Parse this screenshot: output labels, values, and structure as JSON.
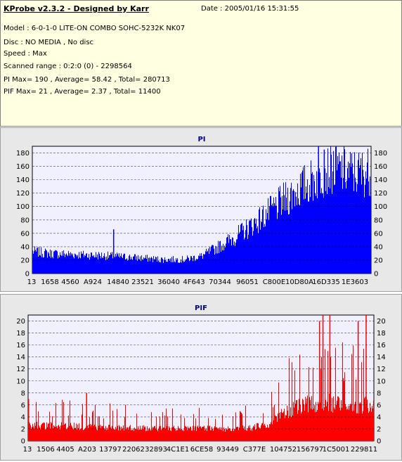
{
  "info": {
    "title": "KProbe v2.3.2 - Designed by Karr",
    "date": "Date : 2005/01/16 15:31:55",
    "model": "Model : 6-0-1-0 LITE-ON COMBO SOHC-5232K NK07",
    "disc": "Disc : NO MEDIA , No disc",
    "speed": "Speed : Max",
    "scanned_range": "Scanned range : 0:2:0 (0) - 2298564",
    "pi_summary": "PI Max= 190 , Average= 58.42 , Total= 280713",
    "pif_summary": "PIF Max= 21 , Average= 2.37 , Total= 11400"
  },
  "chart_data": [
    {
      "type": "bar",
      "title": "PI",
      "ylim": [
        0,
        190
      ],
      "yticks": [
        0,
        20,
        40,
        60,
        80,
        100,
        120,
        140,
        160,
        180
      ],
      "xtick_labels": [
        "13",
        "1658",
        "4560",
        "A924",
        "14840",
        "23521",
        "36040",
        "4F643",
        "70344",
        "96051",
        "C800E",
        "10D80A",
        "16D335",
        "1E3603"
      ],
      "color": "#0000ff",
      "grid": true,
      "envelope_x": [
        0,
        0.05,
        0.1,
        0.2,
        0.3,
        0.38,
        0.45,
        0.5,
        0.55,
        0.6,
        0.65,
        0.7,
        0.75,
        0.8,
        0.85,
        0.88,
        0.92,
        0.96,
        1.0
      ],
      "envelope_y": [
        33,
        30,
        29,
        27,
        24,
        21,
        21,
        26,
        40,
        55,
        73,
        92,
        112,
        130,
        146,
        158,
        153,
        150,
        153
      ],
      "spikes": [
        {
          "x": 0.239,
          "y": 66
        },
        {
          "x": 0.845,
          "y": 190
        },
        {
          "x": 0.862,
          "y": 185
        }
      ]
    },
    {
      "type": "bar",
      "title": "PIF",
      "ylim": [
        0,
        21
      ],
      "yticks": [
        0,
        2,
        4,
        6,
        8,
        10,
        12,
        14,
        16,
        18,
        20
      ],
      "xtick_labels": [
        "13",
        "1506",
        "4405",
        "A203",
        "13797",
        "22062",
        "32893",
        "4C1E1",
        "6CE58",
        "93449",
        "C377E",
        "104752",
        "156797",
        "1C5001",
        "229811"
      ],
      "color": "#ff0000",
      "grid": true,
      "envelope_x": [
        0,
        0.1,
        0.2,
        0.3,
        0.4,
        0.5,
        0.6,
        0.65,
        0.7,
        0.75,
        0.8,
        0.85,
        0.9,
        0.95,
        1.0
      ],
      "envelope_y": [
        2.6,
        2.5,
        2.3,
        2.2,
        2.0,
        2.1,
        2.0,
        2.2,
        3.0,
        5.0,
        6.0,
        6.5,
        6.0,
        5.8,
        6.0
      ],
      "spikes": [
        {
          "x": 0.0,
          "y": 7
        },
        {
          "x": 0.168,
          "y": 8
        },
        {
          "x": 0.843,
          "y": 20
        },
        {
          "x": 0.853,
          "y": 21
        },
        {
          "x": 0.873,
          "y": 21
        },
        {
          "x": 0.955,
          "y": 20
        },
        {
          "x": 0.978,
          "y": 21
        }
      ]
    }
  ]
}
